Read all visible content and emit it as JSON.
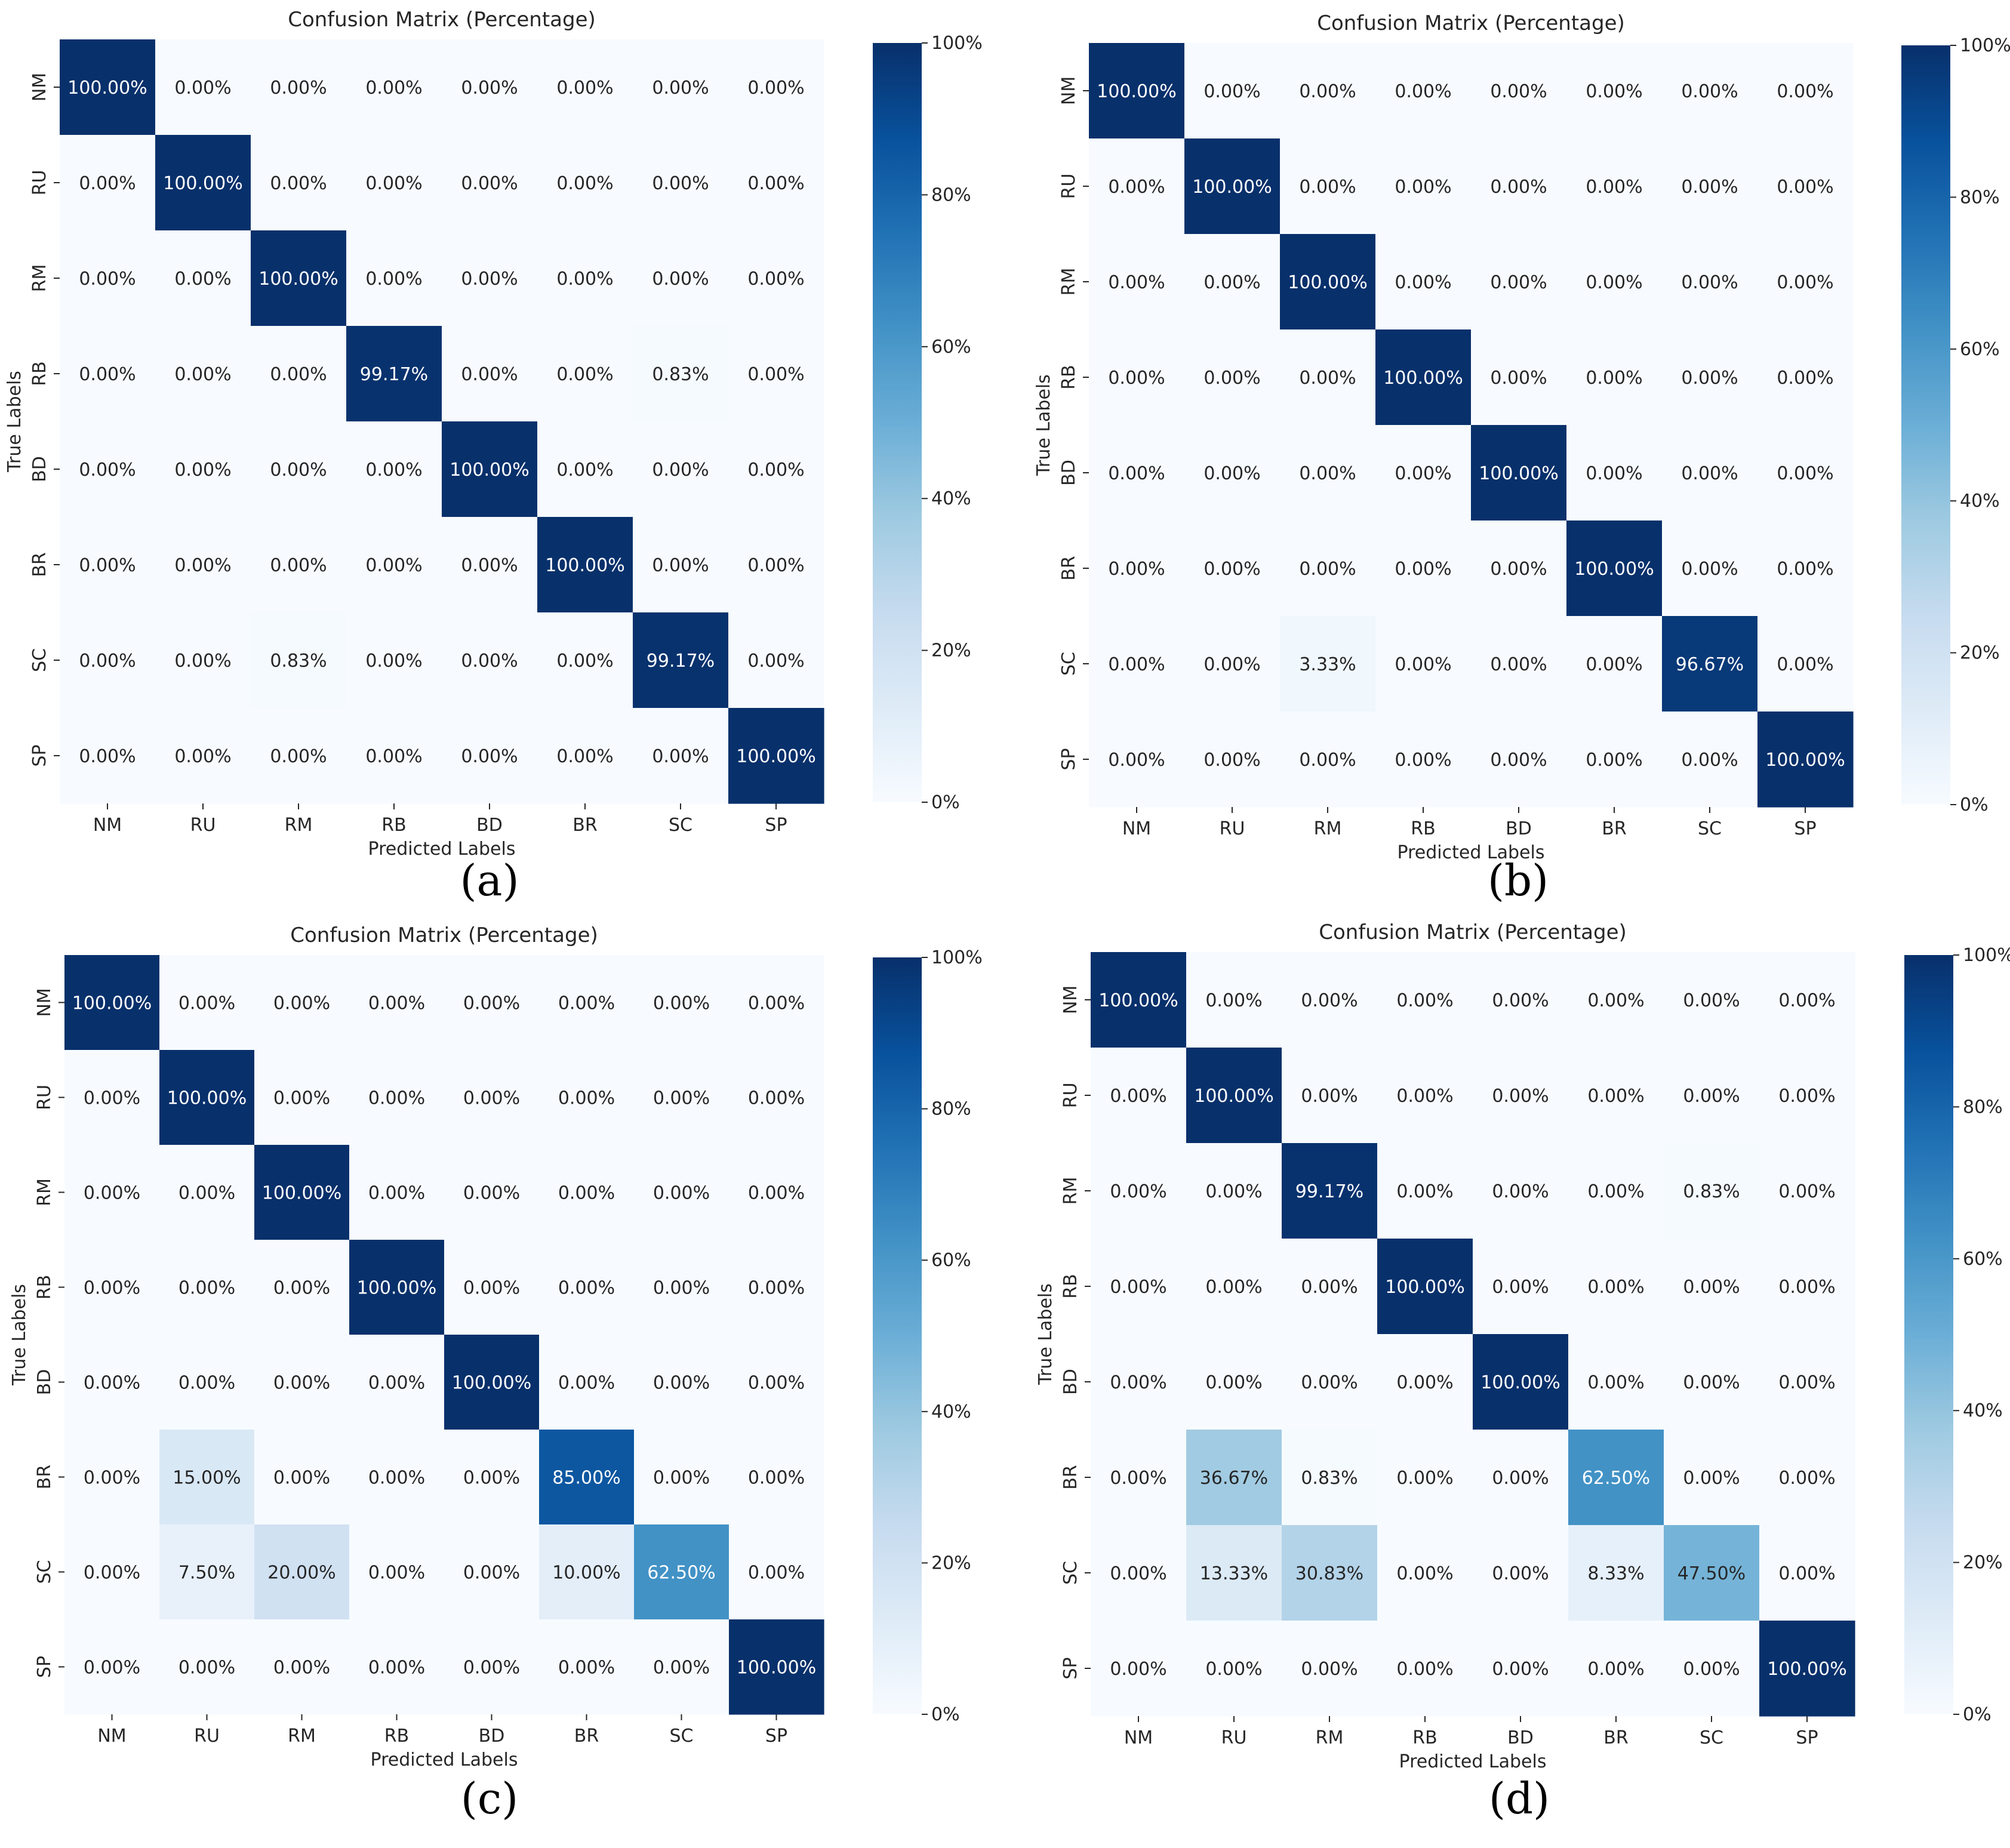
{
  "colorscale": {
    "stops": [
      "#f7fbff",
      "#deebf7",
      "#c6dbef",
      "#9ecae1",
      "#6baed6",
      "#4292c6",
      "#2171b5",
      "#08519c",
      "#08306b"
    ],
    "colorbar_ticks": [
      "0%",
      "20%",
      "40%",
      "60%",
      "80%",
      "100%"
    ],
    "text_dark": "#262626",
    "text_light": "#ffffff"
  },
  "chart_data": [
    {
      "type": "heatmap",
      "panel_label": "(a)",
      "title": "Confusion Matrix (Percentage)",
      "xlabel": "Predicted Labels",
      "ylabel": "True Labels",
      "x_categories": [
        "NM",
        "RU",
        "RM",
        "RB",
        "BD",
        "BR",
        "SC",
        "SP"
      ],
      "y_categories": [
        "NM",
        "RU",
        "RM",
        "RB",
        "BD",
        "BR",
        "SC",
        "SP"
      ],
      "zlim": [
        0,
        100
      ],
      "values": [
        [
          100,
          0,
          0,
          0,
          0,
          0,
          0,
          0
        ],
        [
          0,
          100,
          0,
          0,
          0,
          0,
          0,
          0
        ],
        [
          0,
          0,
          100,
          0,
          0,
          0,
          0,
          0
        ],
        [
          0,
          0,
          0,
          99.17,
          0,
          0,
          0.83,
          0
        ],
        [
          0,
          0,
          0,
          0,
          100,
          0,
          0,
          0
        ],
        [
          0,
          0,
          0,
          0,
          0,
          100,
          0,
          0
        ],
        [
          0,
          0,
          0.83,
          0,
          0,
          0,
          99.17,
          0
        ],
        [
          0,
          0,
          0,
          0,
          0,
          0,
          0,
          100
        ]
      ],
      "cell_labels": [
        [
          "100.00%",
          "0.00%",
          "0.00%",
          "0.00%",
          "0.00%",
          "0.00%",
          "0.00%",
          "0.00%"
        ],
        [
          "0.00%",
          "100.00%",
          "0.00%",
          "0.00%",
          "0.00%",
          "0.00%",
          "0.00%",
          "0.00%"
        ],
        [
          "0.00%",
          "0.00%",
          "100.00%",
          "0.00%",
          "0.00%",
          "0.00%",
          "0.00%",
          "0.00%"
        ],
        [
          "0.00%",
          "0.00%",
          "0.00%",
          "99.17%",
          "0.00%",
          "0.00%",
          "0.83%",
          "0.00%"
        ],
        [
          "0.00%",
          "0.00%",
          "0.00%",
          "0.00%",
          "100.00%",
          "0.00%",
          "0.00%",
          "0.00%"
        ],
        [
          "0.00%",
          "0.00%",
          "0.00%",
          "0.00%",
          "0.00%",
          "100.00%",
          "0.00%",
          "0.00%"
        ],
        [
          "0.00%",
          "0.00%",
          "0.83%",
          "0.00%",
          "0.00%",
          "0.00%",
          "99.17%",
          "0.00%"
        ],
        [
          "0.00%",
          "0.00%",
          "0.00%",
          "0.00%",
          "0.00%",
          "0.00%",
          "0.00%",
          "100.00%"
        ]
      ]
    },
    {
      "type": "heatmap",
      "panel_label": "(b)",
      "title": "Confusion Matrix (Percentage)",
      "xlabel": "Predicted Labels",
      "ylabel": "True Labels",
      "x_categories": [
        "NM",
        "RU",
        "RM",
        "RB",
        "BD",
        "BR",
        "SC",
        "SP"
      ],
      "y_categories": [
        "NM",
        "RU",
        "RM",
        "RB",
        "BD",
        "BR",
        "SC",
        "SP"
      ],
      "zlim": [
        0,
        100
      ],
      "values": [
        [
          100,
          0,
          0,
          0,
          0,
          0,
          0,
          0
        ],
        [
          0,
          100,
          0,
          0,
          0,
          0,
          0,
          0
        ],
        [
          0,
          0,
          100,
          0,
          0,
          0,
          0,
          0
        ],
        [
          0,
          0,
          0,
          100,
          0,
          0,
          0,
          0
        ],
        [
          0,
          0,
          0,
          0,
          100,
          0,
          0,
          0
        ],
        [
          0,
          0,
          0,
          0,
          0,
          100,
          0,
          0
        ],
        [
          0,
          0,
          3.33,
          0,
          0,
          0,
          96.67,
          0
        ],
        [
          0,
          0,
          0,
          0,
          0,
          0,
          0,
          100
        ]
      ],
      "cell_labels": [
        [
          "100.00%",
          "0.00%",
          "0.00%",
          "0.00%",
          "0.00%",
          "0.00%",
          "0.00%",
          "0.00%"
        ],
        [
          "0.00%",
          "100.00%",
          "0.00%",
          "0.00%",
          "0.00%",
          "0.00%",
          "0.00%",
          "0.00%"
        ],
        [
          "0.00%",
          "0.00%",
          "100.00%",
          "0.00%",
          "0.00%",
          "0.00%",
          "0.00%",
          "0.00%"
        ],
        [
          "0.00%",
          "0.00%",
          "0.00%",
          "100.00%",
          "0.00%",
          "0.00%",
          "0.00%",
          "0.00%"
        ],
        [
          "0.00%",
          "0.00%",
          "0.00%",
          "0.00%",
          "100.00%",
          "0.00%",
          "0.00%",
          "0.00%"
        ],
        [
          "0.00%",
          "0.00%",
          "0.00%",
          "0.00%",
          "0.00%",
          "100.00%",
          "0.00%",
          "0.00%"
        ],
        [
          "0.00%",
          "0.00%",
          "3.33%",
          "0.00%",
          "0.00%",
          "0.00%",
          "96.67%",
          "0.00%"
        ],
        [
          "0.00%",
          "0.00%",
          "0.00%",
          "0.00%",
          "0.00%",
          "0.00%",
          "0.00%",
          "100.00%"
        ]
      ]
    },
    {
      "type": "heatmap",
      "panel_label": "(c)",
      "title": "Confusion Matrix (Percentage)",
      "xlabel": "Predicted Labels",
      "ylabel": "True Labels",
      "x_categories": [
        "NM",
        "RU",
        "RM",
        "RB",
        "BD",
        "BR",
        "SC",
        "SP"
      ],
      "y_categories": [
        "NM",
        "RU",
        "RM",
        "RB",
        "BD",
        "BR",
        "SC",
        "SP"
      ],
      "zlim": [
        0,
        100
      ],
      "values": [
        [
          100,
          0,
          0,
          0,
          0,
          0,
          0,
          0
        ],
        [
          0,
          100,
          0,
          0,
          0,
          0,
          0,
          0
        ],
        [
          0,
          0,
          100,
          0,
          0,
          0,
          0,
          0
        ],
        [
          0,
          0,
          0,
          100,
          0,
          0,
          0,
          0
        ],
        [
          0,
          0,
          0,
          0,
          100,
          0,
          0,
          0
        ],
        [
          0,
          15,
          0,
          0,
          0,
          85,
          0,
          0
        ],
        [
          0,
          7.5,
          20,
          0,
          0,
          10,
          62.5,
          0
        ],
        [
          0,
          0,
          0,
          0,
          0,
          0,
          0,
          100
        ]
      ],
      "cell_labels": [
        [
          "100.00%",
          "0.00%",
          "0.00%",
          "0.00%",
          "0.00%",
          "0.00%",
          "0.00%",
          "0.00%"
        ],
        [
          "0.00%",
          "100.00%",
          "0.00%",
          "0.00%",
          "0.00%",
          "0.00%",
          "0.00%",
          "0.00%"
        ],
        [
          "0.00%",
          "0.00%",
          "100.00%",
          "0.00%",
          "0.00%",
          "0.00%",
          "0.00%",
          "0.00%"
        ],
        [
          "0.00%",
          "0.00%",
          "0.00%",
          "100.00%",
          "0.00%",
          "0.00%",
          "0.00%",
          "0.00%"
        ],
        [
          "0.00%",
          "0.00%",
          "0.00%",
          "0.00%",
          "100.00%",
          "0.00%",
          "0.00%",
          "0.00%"
        ],
        [
          "0.00%",
          "15.00%",
          "0.00%",
          "0.00%",
          "0.00%",
          "85.00%",
          "0.00%",
          "0.00%"
        ],
        [
          "0.00%",
          "7.50%",
          "20.00%",
          "0.00%",
          "0.00%",
          "10.00%",
          "62.50%",
          "0.00%"
        ],
        [
          "0.00%",
          "0.00%",
          "0.00%",
          "0.00%",
          "0.00%",
          "0.00%",
          "0.00%",
          "100.00%"
        ]
      ]
    },
    {
      "type": "heatmap",
      "panel_label": "(d)",
      "title": "Confusion Matrix (Percentage)",
      "xlabel": "Predicted Labels",
      "ylabel": "True Labels",
      "x_categories": [
        "NM",
        "RU",
        "RM",
        "RB",
        "BD",
        "BR",
        "SC",
        "SP"
      ],
      "y_categories": [
        "NM",
        "RU",
        "RM",
        "RB",
        "BD",
        "BR",
        "SC",
        "SP"
      ],
      "zlim": [
        0,
        100
      ],
      "values": [
        [
          100,
          0,
          0,
          0,
          0,
          0,
          0,
          0
        ],
        [
          0,
          100,
          0,
          0,
          0,
          0,
          0,
          0
        ],
        [
          0,
          0,
          99.17,
          0,
          0,
          0,
          0.83,
          0
        ],
        [
          0,
          0,
          0,
          100,
          0,
          0,
          0,
          0
        ],
        [
          0,
          0,
          0,
          0,
          100,
          0,
          0,
          0
        ],
        [
          0,
          36.67,
          0.83,
          0,
          0,
          62.5,
          0,
          0
        ],
        [
          0,
          13.33,
          30.83,
          0,
          0,
          8.33,
          47.5,
          0
        ],
        [
          0,
          0,
          0,
          0,
          0,
          0,
          0,
          100
        ]
      ],
      "cell_labels": [
        [
          "100.00%",
          "0.00%",
          "0.00%",
          "0.00%",
          "0.00%",
          "0.00%",
          "0.00%",
          "0.00%"
        ],
        [
          "0.00%",
          "100.00%",
          "0.00%",
          "0.00%",
          "0.00%",
          "0.00%",
          "0.00%",
          "0.00%"
        ],
        [
          "0.00%",
          "0.00%",
          "99.17%",
          "0.00%",
          "0.00%",
          "0.00%",
          "0.83%",
          "0.00%"
        ],
        [
          "0.00%",
          "0.00%",
          "0.00%",
          "100.00%",
          "0.00%",
          "0.00%",
          "0.00%",
          "0.00%"
        ],
        [
          "0.00%",
          "0.00%",
          "0.00%",
          "0.00%",
          "100.00%",
          "0.00%",
          "0.00%",
          "0.00%"
        ],
        [
          "0.00%",
          "36.67%",
          "0.83%",
          "0.00%",
          "0.00%",
          "62.50%",
          "0.00%",
          "0.00%"
        ],
        [
          "0.00%",
          "13.33%",
          "30.83%",
          "0.00%",
          "0.00%",
          "8.33%",
          "47.50%",
          "0.00%"
        ],
        [
          "0.00%",
          "0.00%",
          "0.00%",
          "0.00%",
          "0.00%",
          "0.00%",
          "0.00%",
          "100.00%"
        ]
      ]
    }
  ]
}
